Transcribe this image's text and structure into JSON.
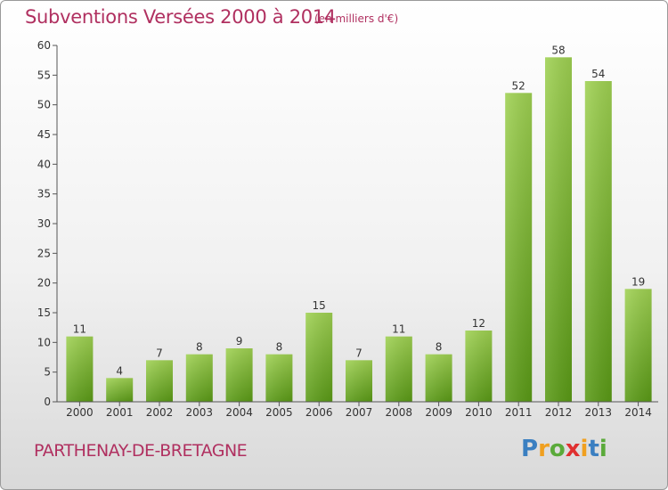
{
  "header": {
    "title": "Subventions Versées 2000 à 2014",
    "unit": "(en milliers d'€)"
  },
  "footer": {
    "place": "PARTHENAY-DE-BRETAGNE",
    "logo_letters": [
      "P",
      "r",
      "o",
      "x",
      "i",
      "t",
      "i"
    ],
    "logo_colors": [
      "#3a7fc1",
      "#f0a020",
      "#5aaa3a",
      "#e03030",
      "#f0a020",
      "#3a7fc1",
      "#5aaa3a"
    ]
  },
  "colors": {
    "bar_light": "#9fd152",
    "bar_dark": "#5a9a16",
    "axis": "#555555",
    "grid": "#bbbbbb"
  },
  "chart_data": {
    "type": "bar",
    "title": "Subventions Versées 2000 à 2014",
    "subtitle": "(en milliers d'€)",
    "xlabel": "",
    "ylabel": "",
    "categories": [
      "2000",
      "2001",
      "2002",
      "2003",
      "2004",
      "2005",
      "2006",
      "2007",
      "2008",
      "2009",
      "2010",
      "2011",
      "2012",
      "2013",
      "2014"
    ],
    "values": [
      11,
      4,
      7,
      8,
      9,
      8,
      15,
      7,
      11,
      8,
      12,
      52,
      58,
      54,
      19
    ],
    "ylim": [
      0,
      60
    ],
    "yticks": [
      0,
      5,
      10,
      15,
      20,
      25,
      30,
      35,
      40,
      45,
      50,
      55,
      60
    ],
    "grid": false,
    "data_labels": true
  }
}
